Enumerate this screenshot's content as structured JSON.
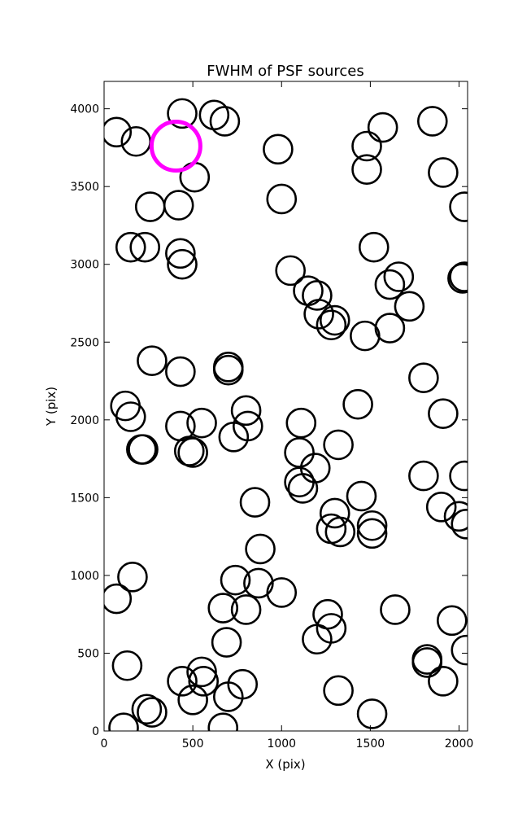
{
  "chart_data": {
    "type": "scatter",
    "title": "FWHM of PSF sources",
    "xlabel": "X (pix)",
    "ylabel": "Y (pix)",
    "xlim": [
      0,
      2048
    ],
    "ylim": [
      0,
      4176
    ],
    "xticks": [
      0,
      500,
      1000,
      1500,
      2000
    ],
    "yticks": [
      0,
      500,
      1000,
      1500,
      2000,
      2500,
      3000,
      3500,
      4000
    ],
    "grid": false,
    "marker": "open-circle",
    "series": [
      {
        "color": "#000000",
        "points": [
          [
            70,
            3850
          ],
          [
            180,
            3790
          ],
          [
            440,
            3970
          ],
          [
            620,
            3960
          ],
          [
            680,
            3920
          ],
          [
            260,
            3370
          ],
          [
            420,
            3380
          ],
          [
            510,
            3560
          ],
          [
            150,
            3110
          ],
          [
            230,
            3110
          ],
          [
            430,
            3070
          ],
          [
            440,
            3000
          ],
          [
            980,
            3740
          ],
          [
            1000,
            3420
          ],
          [
            1480,
            3760
          ],
          [
            1570,
            3880
          ],
          [
            1850,
            3920
          ],
          [
            1910,
            3590
          ],
          [
            2030,
            3370
          ],
          [
            1480,
            3610
          ],
          [
            1520,
            3110
          ],
          [
            1050,
            2960
          ],
          [
            1150,
            2830
          ],
          [
            1200,
            2800
          ],
          [
            1210,
            2680
          ],
          [
            1280,
            2610
          ],
          [
            1300,
            2640
          ],
          [
            1470,
            2540
          ],
          [
            1610,
            2590
          ],
          [
            1610,
            2870
          ],
          [
            1660,
            2920
          ],
          [
            1720,
            2730
          ],
          [
            2020,
            2910
          ],
          [
            2030,
            2920
          ],
          [
            270,
            2380
          ],
          [
            430,
            2310
          ],
          [
            700,
            2340
          ],
          [
            700,
            2320
          ],
          [
            120,
            2090
          ],
          [
            150,
            2020
          ],
          [
            210,
            1810
          ],
          [
            220,
            1810
          ],
          [
            430,
            1960
          ],
          [
            480,
            1800
          ],
          [
            500,
            1790
          ],
          [
            550,
            1980
          ],
          [
            730,
            1890
          ],
          [
            800,
            2060
          ],
          [
            810,
            1960
          ],
          [
            1110,
            1980
          ],
          [
            1100,
            1790
          ],
          [
            1100,
            1600
          ],
          [
            1120,
            1560
          ],
          [
            1190,
            1690
          ],
          [
            1320,
            1840
          ],
          [
            1430,
            2100
          ],
          [
            1450,
            1510
          ],
          [
            1510,
            1320
          ],
          [
            1510,
            1270
          ],
          [
            1280,
            1300
          ],
          [
            1300,
            1400
          ],
          [
            1330,
            1280
          ],
          [
            1800,
            2270
          ],
          [
            1910,
            2040
          ],
          [
            2030,
            1640
          ],
          [
            1800,
            1640
          ],
          [
            1900,
            1440
          ],
          [
            2000,
            1380
          ],
          [
            2040,
            1330
          ],
          [
            850,
            1470
          ],
          [
            880,
            1170
          ],
          [
            160,
            990
          ],
          [
            70,
            850
          ],
          [
            740,
            970
          ],
          [
            870,
            950
          ],
          [
            1000,
            890
          ],
          [
            670,
            790
          ],
          [
            800,
            780
          ],
          [
            690,
            570
          ],
          [
            1260,
            750
          ],
          [
            1280,
            660
          ],
          [
            1200,
            590
          ],
          [
            1640,
            780
          ],
          [
            1820,
            460
          ],
          [
            1820,
            440
          ],
          [
            1910,
            320
          ],
          [
            1960,
            710
          ],
          [
            2040,
            520
          ],
          [
            130,
            420
          ],
          [
            440,
            320
          ],
          [
            550,
            380
          ],
          [
            560,
            320
          ],
          [
            500,
            200
          ],
          [
            700,
            220
          ],
          [
            780,
            300
          ],
          [
            1320,
            260
          ],
          [
            1510,
            110
          ],
          [
            110,
            20
          ],
          [
            240,
            140
          ],
          [
            270,
            120
          ],
          [
            670,
            20
          ]
        ]
      },
      {
        "color": "#ff00ff",
        "points": [
          [
            405,
            3760
          ]
        ]
      }
    ]
  }
}
